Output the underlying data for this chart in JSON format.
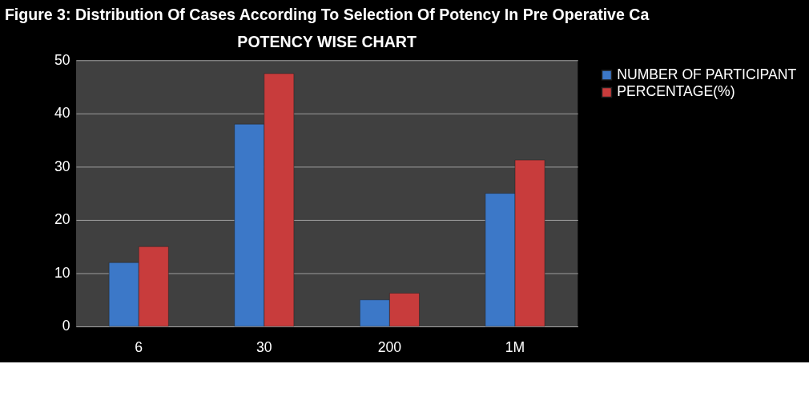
{
  "chart_data": {
    "type": "bar",
    "title": "POTENCY WISE CHART",
    "annotations": [
      "Figure 3: Distribution Of Cases According To Selection Of Potency In Pre Operative Ca"
    ],
    "categories": [
      "6",
      "30",
      "200",
      "1M"
    ],
    "series": [
      {
        "name": "NUMBER OF PARTICIPANT",
        "color": "#3c78c8",
        "values": [
          12,
          38,
          5,
          25
        ]
      },
      {
        "name": "PERCENTAGE(%)",
        "color": "#c83c3c",
        "values": [
          15,
          47.5,
          6.25,
          31.25
        ]
      }
    ],
    "ylim": [
      0,
      50
    ],
    "yticks": [
      0,
      10,
      20,
      30,
      40,
      50
    ],
    "grid": "y",
    "legend": "right"
  }
}
